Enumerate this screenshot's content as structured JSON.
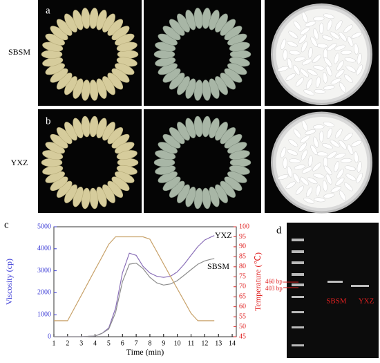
{
  "panels": {
    "a": "a",
    "b": "b",
    "c": "c",
    "d": "d"
  },
  "rows": [
    "SBSM",
    "YXZ"
  ],
  "chart_data": {
    "type": "line",
    "xlabel": "Time (min)",
    "ylabel": "Viscosity (cp)",
    "y2label": "Temperature (℃)",
    "x": [
      1,
      2,
      3,
      4,
      4.5,
      5,
      5.5,
      6,
      6.5,
      7,
      7.5,
      8,
      8.5,
      9,
      9.5,
      10,
      10.5,
      11,
      11.5,
      12,
      12.5,
      12.7
    ],
    "series": [
      {
        "name": "YXZ",
        "color": "#8a6fb8",
        "axis": "y",
        "values": [
          0,
          0,
          0,
          30,
          150,
          400,
          1300,
          2900,
          3800,
          3700,
          3200,
          2900,
          2750,
          2700,
          2750,
          2950,
          3300,
          3700,
          4100,
          4400,
          4550,
          4600
        ]
      },
      {
        "name": "SBSM",
        "color": "#8c8c8c",
        "axis": "y",
        "values": [
          0,
          0,
          0,
          30,
          150,
          350,
          1100,
          2500,
          3300,
          3350,
          3100,
          2700,
          2450,
          2350,
          2400,
          2550,
          2800,
          3050,
          3300,
          3450,
          3530,
          3550
        ]
      },
      {
        "name": "Temperature",
        "color": "#c8a26a",
        "axis": "y2",
        "values": [
          53,
          53,
          65.7,
          78.5,
          84.8,
          91.2,
          95,
          95,
          95,
          95,
          95,
          93.8,
          87.6,
          81.4,
          75.2,
          69,
          62.9,
          56.7,
          53,
          53,
          53,
          53
        ]
      }
    ],
    "xlim": [
      1,
      14.3
    ],
    "xticks": [
      1,
      2,
      3,
      4,
      5,
      6,
      7,
      8,
      9,
      10,
      11,
      12,
      13,
      14
    ],
    "ylim": [
      0,
      5000
    ],
    "yticks": [
      0,
      1000,
      2000,
      3000,
      4000,
      5000
    ],
    "y2lim": [
      45,
      100
    ],
    "y2ticks": [
      45,
      50,
      55,
      60,
      65,
      70,
      75,
      80,
      85,
      90,
      95,
      100
    ],
    "ycolor": "#3b3bd6",
    "y2color": "#e02020"
  },
  "gel": {
    "markers": [
      "460 bp",
      "403 bp"
    ],
    "lanes": [
      "SBSM",
      "YXZ"
    ]
  }
}
